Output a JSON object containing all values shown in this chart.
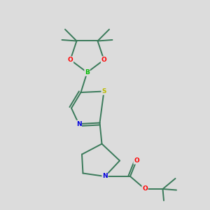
{
  "background_color": "#dcdcdc",
  "bond_color": "#3a7a5a",
  "atom_colors": {
    "O": "#ff0000",
    "N": "#0000dd",
    "S": "#bbbb00",
    "B": "#00bb00",
    "C": "#3a7a5a"
  },
  "line_width": 1.4,
  "figsize": [
    3.0,
    3.0
  ],
  "dpi": 100
}
